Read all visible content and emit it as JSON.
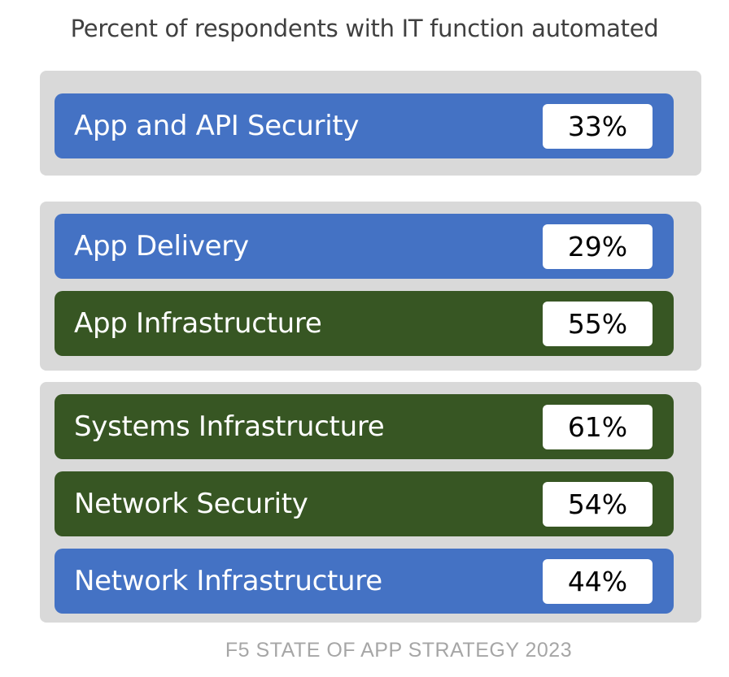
{
  "title": "Percent of respondents with IT function automated",
  "colors": {
    "blue": "#4472c4",
    "green": "#375623",
    "group_bg": "#d9d9d9"
  },
  "items": [
    {
      "label": "App and API Security",
      "value": "33%",
      "color": "blue"
    },
    {
      "label": "App Delivery",
      "value": "29%",
      "color": "blue"
    },
    {
      "label": "App Infrastructure",
      "value": "55%",
      "color": "green"
    },
    {
      "label": "Systems Infrastructure",
      "value": "61%",
      "color": "green"
    },
    {
      "label": "Network Security",
      "value": "54%",
      "color": "green"
    },
    {
      "label": "Network Infrastructure",
      "value": "44%",
      "color": "blue"
    }
  ],
  "footer": "F5 STATE OF APP STRATEGY 2023"
}
